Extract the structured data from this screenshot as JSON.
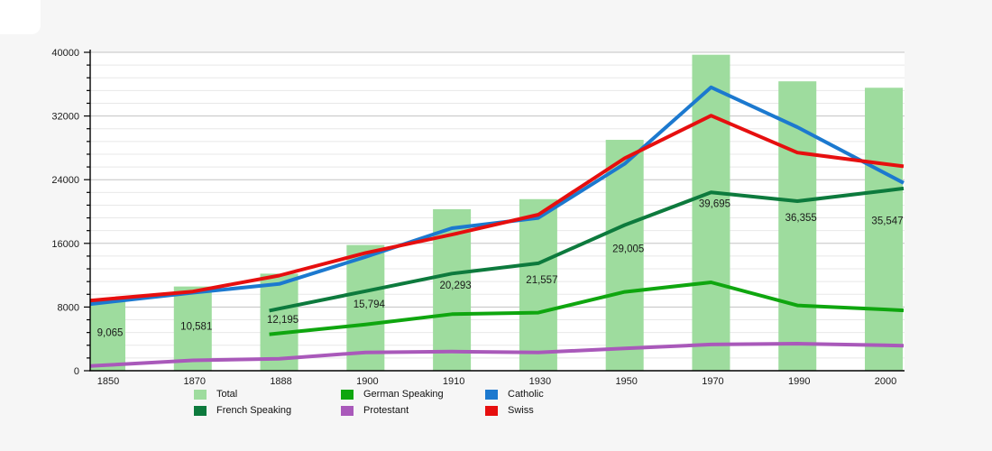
{
  "page": {
    "background": "#f6f6f6"
  },
  "chart_data": {
    "type": "bar+line",
    "title": "",
    "xlabel": "",
    "ylabel": "",
    "categories": [
      "1850",
      "1870",
      "1888",
      "1900",
      "1910",
      "1930",
      "1950",
      "1970",
      "1990",
      "2000"
    ],
    "bar_series": {
      "name": "Total",
      "color": "#9edc9e",
      "values": [
        9065,
        10581,
        12195,
        15794,
        20293,
        21557,
        29005,
        39695,
        36355,
        35547
      ],
      "labels": [
        "9,065",
        "10,581",
        "12,195",
        "15,794",
        "20,293",
        "21,557",
        "29,005",
        "39,695",
        "36,355",
        "35,547"
      ]
    },
    "line_series": [
      {
        "name": "German Speaking",
        "color": "#0fa60f",
        "values": [
          null,
          null,
          4700,
          5800,
          7100,
          7300,
          9900,
          11100,
          8200,
          7700
        ]
      },
      {
        "name": "French Speaking",
        "color": "#0d7a3d",
        "values": [
          null,
          null,
          7800,
          10000,
          12200,
          13500,
          18300,
          22400,
          21300,
          22600
        ]
      },
      {
        "name": "Catholic",
        "color": "#1c79cf",
        "values": [
          8600,
          9800,
          10900,
          14300,
          17900,
          19200,
          26000,
          35600,
          30600,
          24900
        ]
      },
      {
        "name": "Protestant",
        "color": "#a959ba",
        "values": [
          700,
          1300,
          1500,
          2300,
          2400,
          2300,
          2800,
          3300,
          3400,
          3200
        ]
      },
      {
        "name": "Swiss",
        "color": "#e60f0f",
        "values": [
          9000,
          9950,
          11950,
          14800,
          17100,
          19600,
          26700,
          32050,
          27400,
          26000
        ]
      }
    ],
    "yaxis": {
      "min": 0,
      "max": 40000,
      "major_step": 8000,
      "minor_step": 1600,
      "tick_labels": [
        "0",
        "8000",
        "16000",
        "24000",
        "32000",
        "40000"
      ]
    },
    "grid": true,
    "legend_position": "bottom",
    "legend_columns": [
      [
        {
          "label": "Total",
          "color": "#9edc9e"
        },
        {
          "label": "French Speaking",
          "color": "#0d7a3d"
        }
      ],
      [
        {
          "label": "German Speaking",
          "color": "#0fa60f"
        },
        {
          "label": "Protestant",
          "color": "#a959ba"
        }
      ],
      [
        {
          "label": "Catholic",
          "color": "#1c79cf"
        },
        {
          "label": "Swiss",
          "color": "#e60f0f"
        }
      ]
    ]
  }
}
